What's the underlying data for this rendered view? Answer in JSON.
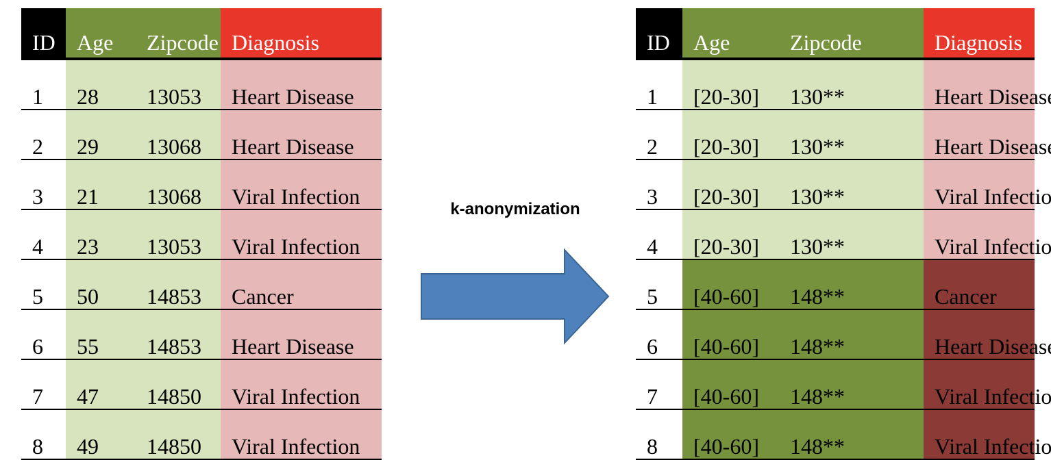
{
  "left_table": {
    "headers": [
      "ID",
      "Age",
      "Zipcode",
      "Diagnosis"
    ],
    "rows": [
      [
        "1",
        "28",
        "13053",
        "Heart Disease"
      ],
      [
        "2",
        "29",
        "13068",
        "Heart Disease"
      ],
      [
        "3",
        "21",
        "13068",
        "Viral Infection"
      ],
      [
        "4",
        "23",
        "13053",
        "Viral Infection"
      ],
      [
        "5",
        "50",
        "14853",
        "Cancer"
      ],
      [
        "6",
        "55",
        "14853",
        "Heart Disease"
      ],
      [
        "7",
        "47",
        "14850",
        "Viral Infection"
      ],
      [
        "8",
        "49",
        "14850",
        "Viral Infection"
      ]
    ]
  },
  "arrow_label": "k-anonymization",
  "right_table": {
    "headers": [
      "ID",
      "Age",
      "Zipcode",
      "Diagnosis"
    ],
    "rows": [
      [
        "1",
        "[20-30]",
        "130**",
        "Heart Disease"
      ],
      [
        "2",
        "[20-30]",
        "130**",
        "Heart Disease"
      ],
      [
        "3",
        "[20-30]",
        "130**",
        "Viral Infection"
      ],
      [
        "4",
        "[20-30]",
        "130**",
        "Viral Infection"
      ],
      [
        "5",
        "[40-60]",
        "148**",
        "Cancer"
      ],
      [
        "6",
        "[40-60]",
        "148**",
        "Heart Disease"
      ],
      [
        "7",
        "[40-60]",
        "148**",
        "Viral Infection"
      ],
      [
        "8",
        "[40-60]",
        "148**",
        "Viral Infection"
      ]
    ]
  },
  "colors": {
    "header_id": "#000000",
    "header_qi": "#76923c",
    "header_sensitive": "#e8372a",
    "qi_light": "#d7e4bd",
    "sensitive_light": "#e6b9b8",
    "qi_dark": "#76923c",
    "sensitive_dark": "#8b3a36",
    "arrow": "#4f81bd"
  }
}
